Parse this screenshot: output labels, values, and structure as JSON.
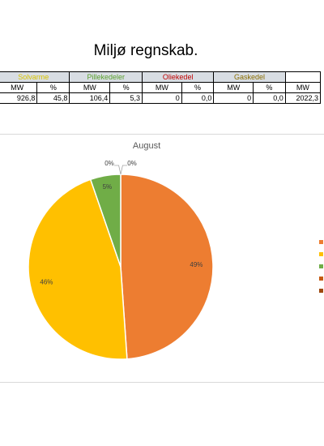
{
  "page": {
    "title": "Miljø regnskab."
  },
  "table": {
    "groups": [
      {
        "label": "Solvarme",
        "color": "#d9c400"
      },
      {
        "label": "Pillekedeler",
        "color": "#5aa02c"
      },
      {
        "label": "Oliekedel",
        "color": "#c00000"
      },
      {
        "label": "Gaskedel",
        "color": "#8a6d00"
      }
    ],
    "units": [
      "MW",
      "%",
      "MW",
      "%",
      "MW",
      "%",
      "MW",
      "%",
      "MW",
      "%",
      "MW"
    ],
    "values": [
      "926,8",
      "45,8",
      "106,4",
      "5,3",
      "0",
      "0,0",
      "0",
      "0,0",
      "2022,3"
    ]
  },
  "chart_data": {
    "type": "pie",
    "title": "August",
    "start_angle_deg": 0,
    "direction": "clockwise",
    "slices": [
      {
        "label": "49%",
        "value": 48.9,
        "color": "#ed7d31"
      },
      {
        "label": "46%",
        "value": 45.8,
        "color": "#ffc000"
      },
      {
        "label": "5%",
        "value": 5.3,
        "color": "#70ad47"
      },
      {
        "label": "0%",
        "value": 0.0,
        "color": "#c55a11"
      },
      {
        "label": "0%",
        "value": 0.0,
        "color": "#9e480e"
      }
    ],
    "legend": {
      "placement": "right",
      "colors": [
        "#ed7d31",
        "#ffc000",
        "#70ad47",
        "#c55a11",
        "#9e480e"
      ]
    }
  }
}
